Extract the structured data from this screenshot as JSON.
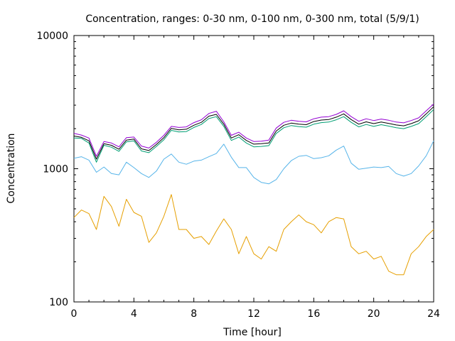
{
  "chart_data": {
    "type": "line",
    "title": "Concentration, ranges: 0-30 nm, 0-100 nm, 0-300 nm, total (5/9/1)",
    "xlabel": "Time [hour]",
    "ylabel": "Concentration",
    "xlim": [
      0,
      24
    ],
    "ylim": [
      100,
      10000
    ],
    "yscale": "log",
    "x_ticks": [
      0,
      4,
      8,
      12,
      16,
      20,
      24
    ],
    "x_tick_labels": [
      "0",
      "4",
      "8",
      "12",
      "16",
      "20",
      "24"
    ],
    "y_ticks": [
      100,
      1000,
      10000
    ],
    "y_tick_labels": [
      "100",
      "1000",
      "10000"
    ],
    "grid": false,
    "legend": "none",
    "x": [
      0,
      0.5,
      1,
      1.5,
      2,
      2.5,
      3,
      3.5,
      4,
      4.5,
      5,
      5.5,
      6,
      6.5,
      7,
      7.5,
      8,
      8.5,
      9,
      9.5,
      10,
      10.5,
      11,
      11.5,
      12,
      12.5,
      13,
      13.5,
      14,
      14.5,
      15,
      15.5,
      16,
      16.5,
      17,
      17.5,
      18,
      18.5,
      19,
      19.5,
      20,
      20.5,
      21,
      21.5,
      22,
      22.5,
      23,
      23.5,
      24
    ],
    "series": [
      {
        "color": "#e69f00",
        "values": [
          430,
          490,
          460,
          350,
          620,
          520,
          370,
          590,
          470,
          440,
          280,
          330,
          440,
          640,
          350,
          350,
          300,
          310,
          270,
          340,
          420,
          350,
          230,
          310,
          230,
          210,
          260,
          240,
          350,
          400,
          450,
          400,
          380,
          330,
          400,
          430,
          420,
          260,
          230,
          240,
          210,
          220,
          170,
          160,
          160,
          230,
          260,
          310,
          350
        ]
      },
      {
        "color": "#56b4e9",
        "values": [
          1200,
          1230,
          1160,
          940,
          1030,
          920,
          900,
          1120,
          1020,
          920,
          860,
          960,
          1180,
          1290,
          1120,
          1080,
          1140,
          1160,
          1230,
          1300,
          1530,
          1220,
          1020,
          1020,
          860,
          790,
          770,
          830,
          1000,
          1150,
          1240,
          1260,
          1190,
          1210,
          1250,
          1380,
          1480,
          1100,
          990,
          1010,
          1030,
          1020,
          1040,
          920,
          880,
          920,
          1050,
          1250,
          1620
        ]
      },
      {
        "color": "#009e73",
        "values": [
          1700,
          1690,
          1560,
          1120,
          1500,
          1450,
          1350,
          1590,
          1620,
          1360,
          1320,
          1470,
          1650,
          1940,
          1890,
          1900,
          2040,
          2150,
          2380,
          2460,
          2080,
          1630,
          1730,
          1560,
          1460,
          1470,
          1490,
          1840,
          2030,
          2110,
          2070,
          2050,
          2160,
          2220,
          2240,
          2330,
          2460,
          2230,
          2060,
          2150,
          2080,
          2140,
          2090,
          2030,
          2000,
          2080,
          2180,
          2460,
          2780
        ]
      },
      {
        "color": "#000000",
        "values": [
          1760,
          1720,
          1620,
          1180,
          1540,
          1500,
          1400,
          1640,
          1670,
          1410,
          1370,
          1520,
          1710,
          2010,
          1960,
          1980,
          2120,
          2230,
          2480,
          2560,
          2160,
          1700,
          1800,
          1630,
          1530,
          1540,
          1560,
          1920,
          2120,
          2200,
          2160,
          2140,
          2260,
          2320,
          2340,
          2440,
          2580,
          2340,
          2160,
          2250,
          2180,
          2240,
          2190,
          2130,
          2100,
          2180,
          2290,
          2580,
          2920
        ]
      },
      {
        "color": "#9400d3",
        "values": [
          1840,
          1790,
          1700,
          1240,
          1600,
          1560,
          1460,
          1710,
          1730,
          1480,
          1430,
          1580,
          1780,
          2080,
          2040,
          2060,
          2220,
          2330,
          2600,
          2700,
          2250,
          1780,
          1880,
          1700,
          1600,
          1610,
          1640,
          2020,
          2230,
          2310,
          2270,
          2250,
          2370,
          2440,
          2460,
          2560,
          2720,
          2460,
          2270,
          2370,
          2300,
          2360,
          2310,
          2240,
          2210,
          2300,
          2410,
          2720,
          3060
        ]
      }
    ]
  }
}
